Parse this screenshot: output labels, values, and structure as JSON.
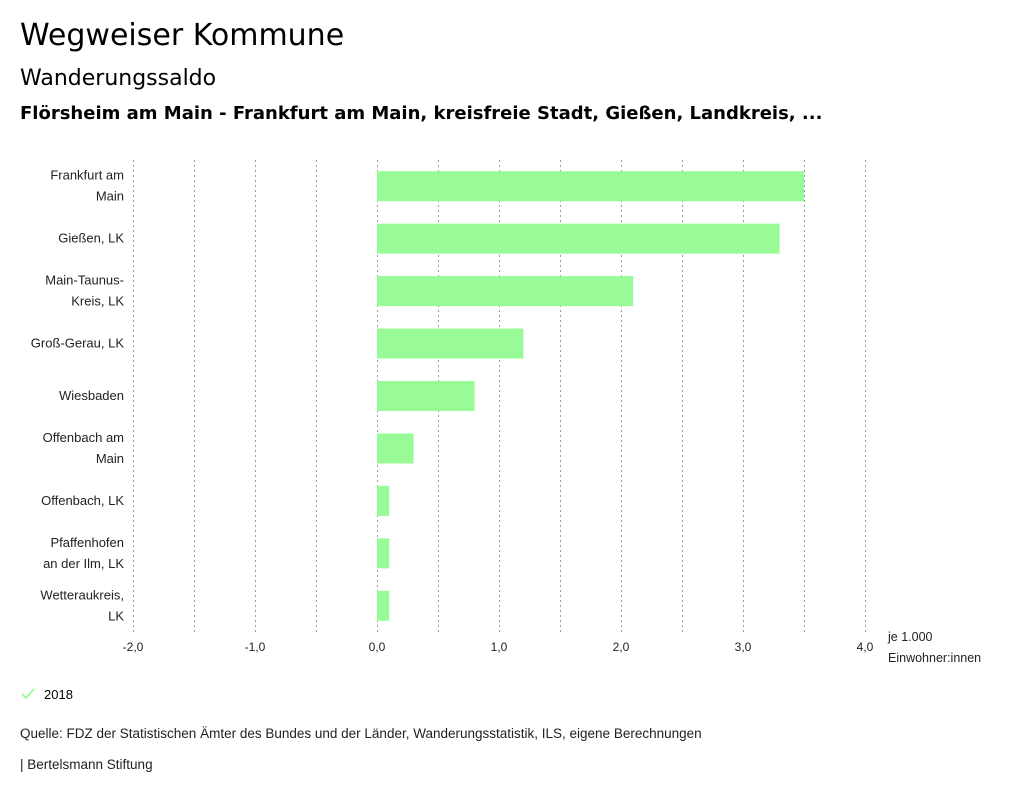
{
  "header": {
    "title": "Wegweiser Kommune",
    "subtitle": "Wanderungssaldo",
    "region": "Flörsheim am Main - Frankfurt am Main, kreisfreie Stadt, Gießen, Landkreis, ..."
  },
  "chart_data": {
    "type": "bar",
    "orientation": "horizontal",
    "categories": [
      [
        "Frankfurt am",
        "Main"
      ],
      [
        "Gießen, LK"
      ],
      [
        "Main-Taunus-",
        "Kreis, LK"
      ],
      [
        "Groß-Gerau, LK"
      ],
      [
        "Wiesbaden"
      ],
      [
        "Offenbach am",
        "Main"
      ],
      [
        "Offenbach, LK"
      ],
      [
        "Pfaffenhofen",
        "an der Ilm, LK"
      ],
      [
        "Wetteraukreis,",
        "LK"
      ]
    ],
    "series": [
      {
        "name": "2018",
        "color": "#98fb98",
        "values": [
          3.5,
          3.3,
          2.1,
          1.2,
          0.8,
          0.3,
          0.1,
          0.1,
          0.1
        ]
      }
    ],
    "xlim": [
      -2.0,
      4.0
    ],
    "xticks": [
      -2.0,
      -1.0,
      0.0,
      1.0,
      2.0,
      3.0,
      4.0
    ],
    "xtick_labels": [
      "-2,0",
      "-1,0",
      "0,0",
      "1,0",
      "2,0",
      "3,0",
      "4,0"
    ],
    "xlabel": [
      "je 1.000",
      "Einwohner:innen"
    ],
    "grid": true
  },
  "legend": {
    "label": "2018",
    "color": "#98fb98"
  },
  "footer": {
    "source": "Quelle: FDZ der Statistischen Ämter des Bundes und der Länder, Wanderungsstatistik, ILS, eigene Berechnungen",
    "publisher": "| Bertelsmann Stiftung"
  }
}
